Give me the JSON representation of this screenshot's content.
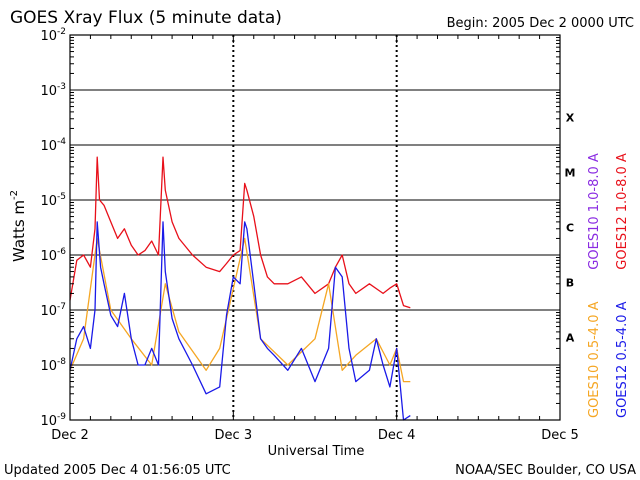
{
  "title": "GOES Xray Flux (5 minute data)",
  "begin_label": "Begin:  2005 Dec 2 0000 UTC",
  "updated_label": "Updated 2005 Dec  4 01:56:05 UTC",
  "credit_label": "NOAA/SEC Boulder, CO USA",
  "chart_data": {
    "type": "line",
    "title": "GOES Xray Flux (5 minute data)",
    "xlabel": "Universal Time",
    "ylabel": "Watts m",
    "ylabel_superscript": "-2",
    "y_scale": "log",
    "ylim": [
      1e-09,
      0.01
    ],
    "xlim": [
      "2005-12-02 00:00",
      "2005-12-05 00:00"
    ],
    "x_tick_labels": [
      "Dec 2",
      "Dec 3",
      "Dec 4",
      "Dec 5"
    ],
    "y_tick_labels": [
      {
        "base": "10",
        "exp": "-9"
      },
      {
        "base": "10",
        "exp": "-8"
      },
      {
        "base": "10",
        "exp": "-7"
      },
      {
        "base": "10",
        "exp": "-6"
      },
      {
        "base": "10",
        "exp": "-5"
      },
      {
        "base": "10",
        "exp": "-4"
      },
      {
        "base": "10",
        "exp": "-3"
      },
      {
        "base": "10",
        "exp": "-2"
      }
    ],
    "flare_classes": [
      "A",
      "B",
      "C",
      "M",
      "X"
    ],
    "grid": true,
    "legend": [
      {
        "label": "GOES10 1.0-8.0 A",
        "color": "#8a2be2"
      },
      {
        "label": "GOES12 1.0-8.0 A",
        "color": "#e8101a"
      },
      {
        "label": "GOES10 0.5-4.0 A",
        "color": "#f5a623"
      },
      {
        "label": "GOES12 0.5-4.0 A",
        "color": "#1a1ae8"
      }
    ],
    "series": [
      {
        "name": "GOES12 1.0-8.0 A",
        "color": "#e8101a",
        "x": [
          "2005-12-02 00:00",
          "2005-12-02 01:00",
          "2005-12-02 02:00",
          "2005-12-02 03:00",
          "2005-12-02 03:40",
          "2005-12-02 04:00",
          "2005-12-02 04:20",
          "2005-12-02 05:00",
          "2005-12-02 06:00",
          "2005-12-02 07:00",
          "2005-12-02 08:00",
          "2005-12-02 09:00",
          "2005-12-02 10:00",
          "2005-12-02 11:00",
          "2005-12-02 12:00",
          "2005-12-02 13:00",
          "2005-12-02 13:40",
          "2005-12-02 14:00",
          "2005-12-02 15:00",
          "2005-12-02 16:00",
          "2005-12-02 18:00",
          "2005-12-02 20:00",
          "2005-12-02 22:00",
          "2005-12-02 23:00",
          "2005-12-03 00:00",
          "2005-12-03 01:00",
          "2005-12-03 01:40",
          "2005-12-03 02:00",
          "2005-12-03 03:00",
          "2005-12-03 04:00",
          "2005-12-03 05:00",
          "2005-12-03 06:00",
          "2005-12-03 08:00",
          "2005-12-03 10:00",
          "2005-12-03 12:00",
          "2005-12-03 14:00",
          "2005-12-03 15:00",
          "2005-12-03 16:00",
          "2005-12-03 17:00",
          "2005-12-03 18:00",
          "2005-12-03 20:00",
          "2005-12-03 22:00",
          "2005-12-03 23:00",
          "2005-12-04 00:00",
          "2005-12-04 01:00",
          "2005-12-04 02:00"
        ],
        "values": [
          1.5e-07,
          8e-07,
          1e-06,
          6e-07,
          3e-06,
          6e-05,
          1e-05,
          8e-06,
          4e-06,
          2e-06,
          3e-06,
          1.5e-06,
          1e-06,
          1.2e-06,
          1.8e-06,
          1e-06,
          6e-05,
          1.5e-05,
          4e-06,
          2e-06,
          1e-06,
          6e-07,
          5e-07,
          7e-07,
          1e-06,
          1.2e-06,
          2e-05,
          1.5e-05,
          5e-06,
          1e-06,
          4e-07,
          3e-07,
          3e-07,
          4e-07,
          2e-07,
          3e-07,
          6e-07,
          1e-06,
          3e-07,
          2e-07,
          3e-07,
          2e-07,
          2.5e-07,
          3e-07,
          1.2e-07,
          1.1e-07
        ]
      },
      {
        "name": "GOES10 0.5-4.0 A",
        "color": "#f5a623",
        "x": [
          "2005-12-02 00:00",
          "2005-12-02 02:00",
          "2005-12-02 04:00",
          "2005-12-02 06:00",
          "2005-12-02 09:00",
          "2005-12-02 12:00",
          "2005-12-02 14:00",
          "2005-12-02 16:00",
          "2005-12-02 20:00",
          "2005-12-02 22:00",
          "2005-12-03 01:40",
          "2005-12-03 04:00",
          "2005-12-03 08:00",
          "2005-12-03 12:00",
          "2005-12-03 14:00",
          "2005-12-03 16:00",
          "2005-12-03 18:00",
          "2005-12-03 21:00",
          "2005-12-03 23:00",
          "2005-12-04 00:00",
          "2005-12-04 01:00",
          "2005-12-04 02:00"
        ],
        "values": [
          8e-09,
          3e-08,
          2e-06,
          1e-07,
          3e-08,
          1e-08,
          3e-07,
          4e-08,
          8e-09,
          2e-08,
          2e-06,
          3e-08,
          1e-08,
          3e-08,
          3e-07,
          8e-09,
          1.5e-08,
          3e-08,
          1e-08,
          2e-08,
          5e-09,
          5e-09
        ]
      },
      {
        "name": "GOES12 0.5-4.0 A",
        "color": "#1a1ae8",
        "x": [
          "2005-12-02 00:00",
          "2005-12-02 01:00",
          "2005-12-02 02:00",
          "2005-12-02 03:00",
          "2005-12-02 03:40",
          "2005-12-02 04:00",
          "2005-12-02 04:30",
          "2005-12-02 05:00",
          "2005-12-02 06:00",
          "2005-12-02 07:00",
          "2005-12-02 08:00",
          "2005-12-02 09:00",
          "2005-12-02 10:00",
          "2005-12-02 11:00",
          "2005-12-02 12:00",
          "2005-12-02 13:00",
          "2005-12-02 13:40",
          "2005-12-02 14:00",
          "2005-12-02 15:00",
          "2005-12-02 16:00",
          "2005-12-02 18:00",
          "2005-12-02 20:00",
          "2005-12-02 22:00",
          "2005-12-02 23:00",
          "2005-12-03 00:00",
          "2005-12-03 01:00",
          "2005-12-03 01:40",
          "2005-12-03 02:00",
          "2005-12-03 03:00",
          "2005-12-03 04:00",
          "2005-12-03 05:00",
          "2005-12-03 06:00",
          "2005-12-03 08:00",
          "2005-12-03 10:00",
          "2005-12-03 12:00",
          "2005-12-03 14:00",
          "2005-12-03 15:00",
          "2005-12-03 16:00",
          "2005-12-03 17:00",
          "2005-12-03 18:00",
          "2005-12-03 20:00",
          "2005-12-03 21:00",
          "2005-12-03 22:00",
          "2005-12-03 23:00",
          "2005-12-04 00:00",
          "2005-12-04 01:00",
          "2005-12-04 02:00"
        ],
        "values": [
          8e-09,
          3e-08,
          5e-08,
          2e-08,
          1e-07,
          4e-06,
          6e-07,
          3e-07,
          8e-08,
          5e-08,
          2e-07,
          3e-08,
          1e-08,
          1e-08,
          2e-08,
          1e-08,
          4e-06,
          5e-07,
          7e-08,
          3e-08,
          1e-08,
          3e-09,
          4e-09,
          8e-08,
          4e-07,
          3e-07,
          4e-06,
          3e-06,
          3e-07,
          3e-08,
          2e-08,
          1.5e-08,
          8e-09,
          2e-08,
          5e-09,
          2e-08,
          6e-07,
          4e-07,
          2e-08,
          5e-09,
          8e-09,
          3e-08,
          1e-08,
          4e-09,
          2e-08,
          1e-09,
          1.2e-09
        ]
      }
    ]
  }
}
